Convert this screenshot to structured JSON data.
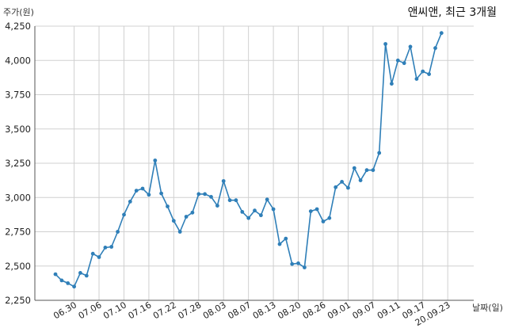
{
  "chart_data": {
    "type": "line",
    "title": "앤씨앤, 최근 3개월",
    "ylabel": "주가(원)",
    "xlabel": "날짜(일)",
    "ylim": [
      2250,
      4250
    ],
    "yticks": [
      "2,250",
      "2,500",
      "2,750",
      "3,000",
      "3,250",
      "3,500",
      "3,750",
      "4,000",
      "4,250"
    ],
    "ytick_values": [
      2250,
      2500,
      2750,
      3000,
      3250,
      3500,
      3750,
      4000,
      4250
    ],
    "xtick_labels": [
      "06.30",
      "07.06",
      "07.10",
      "07.16",
      "07.22",
      "07.28",
      "08.03",
      "08.07",
      "08.13",
      "08.20",
      "08.26",
      "09.01",
      "09.07",
      "09.11",
      "09.17",
      "20.09.23"
    ],
    "xtick_indices": [
      3,
      7,
      11,
      15,
      19,
      23,
      27,
      31,
      35,
      39,
      43,
      47,
      51,
      55,
      59,
      63
    ],
    "grid": true,
    "color": "#2f7fb8",
    "values": [
      2440,
      2395,
      2375,
      2350,
      2450,
      2430,
      2590,
      2565,
      2635,
      2640,
      2750,
      2875,
      2970,
      3050,
      3065,
      3020,
      3270,
      3030,
      2935,
      2830,
      2750,
      2860,
      2890,
      3025,
      3025,
      3005,
      2940,
      3120,
      2980,
      2980,
      2895,
      2850,
      2905,
      2870,
      2985,
      2915,
      2660,
      2700,
      2515,
      2520,
      2490,
      2900,
      2915,
      2825,
      2850,
      3075,
      3115,
      3070,
      3215,
      3125,
      3200,
      3200,
      3325,
      4120,
      3830,
      4000,
      3980,
      4100,
      3865,
      3920,
      3900,
      4090,
      4200
    ]
  }
}
